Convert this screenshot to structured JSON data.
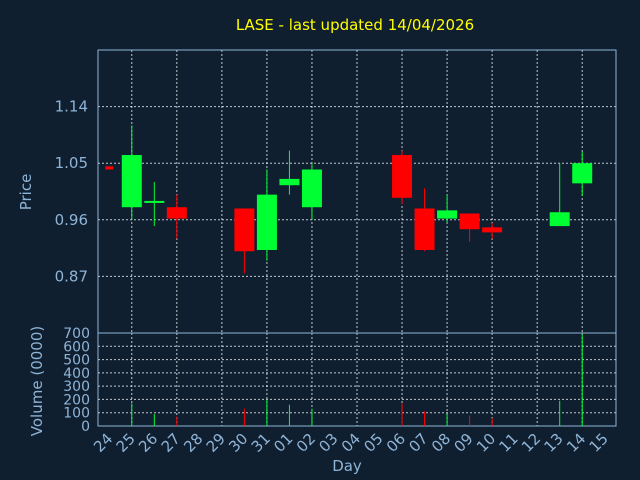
{
  "chart_data": {
    "type": "candlestick",
    "title": "LASE - last updated 14/04/2026",
    "ylabel": "Price",
    "volume_label": "Volume (0000)",
    "xlabel": "Day",
    "price_ticks": [
      "1.14",
      "1.05",
      "0.96",
      "0.87"
    ],
    "price_tick_values": [
      1.14,
      1.05,
      0.96,
      0.87
    ],
    "price_ylim": [
      0.78,
      1.23
    ],
    "volume_ticks": [
      "700",
      "600",
      "500",
      "400",
      "300",
      "200",
      "100",
      "0"
    ],
    "volume_tick_values": [
      700,
      600,
      500,
      400,
      300,
      200,
      100,
      0
    ],
    "volume_ylim": [
      0,
      700
    ],
    "x_labels": [
      "24",
      "25",
      "26",
      "27",
      "28",
      "29",
      "30",
      "31",
      "01",
      "02",
      "03",
      "04",
      "05",
      "06",
      "07",
      "08",
      "09",
      "10",
      "11",
      "12",
      "13",
      "14",
      "15"
    ],
    "candles": [
      {
        "day": "24",
        "open": 1.045,
        "high": 1.045,
        "low": 1.04,
        "close": 1.04,
        "volume": 0
      },
      {
        "day": "25",
        "open": 0.98,
        "high": 1.11,
        "low": 0.96,
        "close": 1.063,
        "volume": 170
      },
      {
        "day": "26",
        "open": 0.99,
        "high": 1.02,
        "low": 0.95,
        "close": 0.99,
        "volume": 90
      },
      {
        "day": "27",
        "open": 0.98,
        "high": 1.0,
        "low": 0.93,
        "close": 0.962,
        "volume": 70
      },
      {
        "day": "30",
        "open": 0.978,
        "high": 0.978,
        "low": 0.875,
        "close": 0.91,
        "volume": 130
      },
      {
        "day": "31",
        "open": 0.912,
        "high": 1.04,
        "low": 0.895,
        "close": 1.0,
        "volume": 200
      },
      {
        "day": "01",
        "open": 1.015,
        "high": 1.07,
        "low": 1.0,
        "close": 1.025,
        "volume": 160
      },
      {
        "day": "02",
        "open": 0.98,
        "high": 1.05,
        "low": 0.96,
        "close": 1.04,
        "volume": 130
      },
      {
        "day": "06",
        "open": 1.063,
        "high": 1.07,
        "low": 0.985,
        "close": 0.995,
        "volume": 170
      },
      {
        "day": "07",
        "open": 0.978,
        "high": 1.01,
        "low": 0.91,
        "close": 0.912,
        "volume": 110
      },
      {
        "day": "08",
        "open": 0.962,
        "high": 1.0,
        "low": 0.955,
        "close": 0.975,
        "volume": 90
      },
      {
        "day": "09",
        "open": 0.97,
        "high": 0.97,
        "low": 0.925,
        "close": 0.945,
        "volume": 80
      },
      {
        "day": "10",
        "open": 0.948,
        "high": 0.955,
        "low": 0.93,
        "close": 0.94,
        "volume": 60
      },
      {
        "day": "13",
        "open": 0.95,
        "high": 1.05,
        "low": 0.95,
        "close": 0.972,
        "volume": 190
      },
      {
        "day": "14",
        "open": 1.018,
        "high": 1.068,
        "low": 0.998,
        "close": 1.05,
        "volume": 690
      }
    ],
    "colors": {
      "up": "#00ff33",
      "down": "#ff0000",
      "background": "#0f1f30",
      "axis": "#8fb4d6",
      "title": "#ffff00",
      "grid": "#ffffff"
    }
  }
}
